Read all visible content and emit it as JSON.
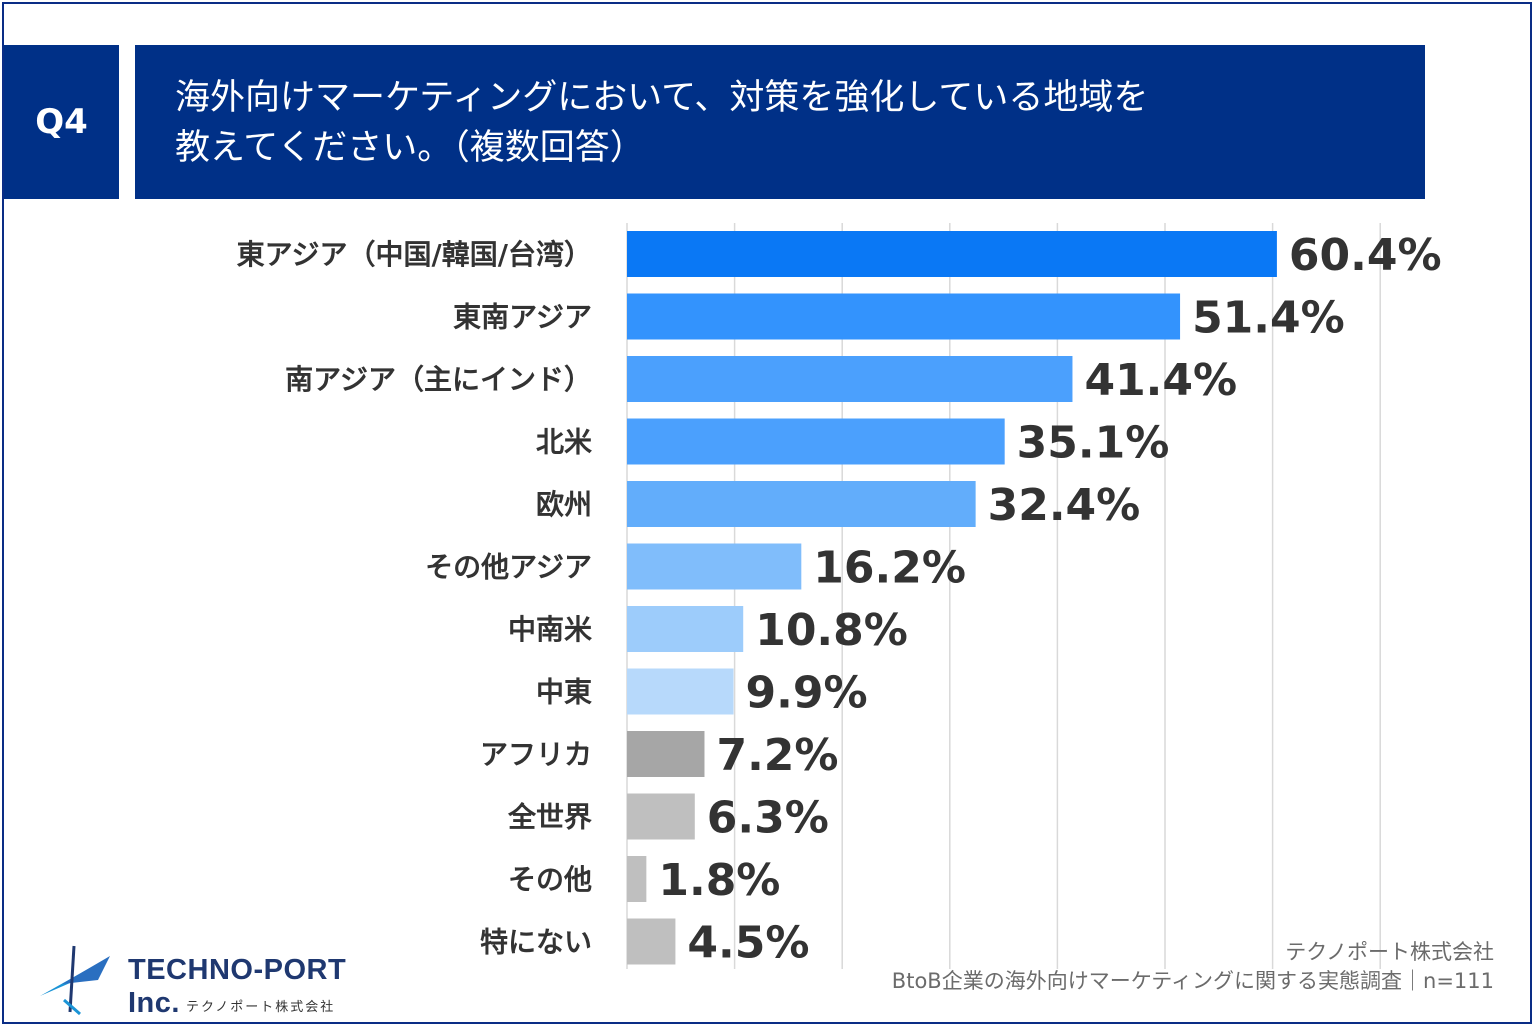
{
  "question": {
    "badge": "Q4",
    "line1": "海外向けマーケティングにおいて、対策を強化している地域を",
    "line2": "教えてください。（複数回答）"
  },
  "chart_data": {
    "type": "bar",
    "orientation": "horizontal",
    "categories": [
      "東アジア（中国/韓国/台湾）",
      "東南アジア",
      "南アジア（主にインド）",
      "北米",
      "欧州",
      "その他アジア",
      "中南米",
      "中東",
      "アフリカ",
      "全世界",
      "その他",
      "特にない"
    ],
    "values": [
      60.4,
      51.4,
      41.4,
      35.1,
      32.4,
      16.2,
      10.8,
      9.9,
      7.2,
      6.3,
      1.8,
      4.5
    ],
    "value_labels": [
      "60.4%",
      "51.4%",
      "41.4%",
      "35.1%",
      "32.4%",
      "16.2%",
      "10.8%",
      "9.9%",
      "7.2%",
      "6.3%",
      "1.8%",
      "4.5%"
    ],
    "bar_colors": [
      "#0a78f5",
      "#3393fd",
      "#4ba0fd",
      "#4ba0fd",
      "#62adfb",
      "#80bdfb",
      "#9dccfb",
      "#b7d9fb",
      "#a6a6a6",
      "#bfbfbf",
      "#bfbfbf",
      "#bfbfbf"
    ],
    "xlim": [
      0,
      70
    ],
    "x_gridlines": [
      0,
      10,
      20,
      30,
      40,
      50,
      60,
      70
    ],
    "grid": true,
    "title": "",
    "xlabel": "",
    "ylabel": ""
  },
  "footer": {
    "company": "テクノポート株式会社",
    "survey": "BtoB企業の海外向けマーケティングに関する実態調査｜n=111"
  },
  "logo": {
    "name": "TECHNO-PORT Inc.",
    "subtitle": "テクノポート株式会社"
  },
  "colors": {
    "header_bg": "#003087",
    "frame_border": "#0a2d86",
    "gridline": "#d9d9d9",
    "label_text": "#333333"
  }
}
